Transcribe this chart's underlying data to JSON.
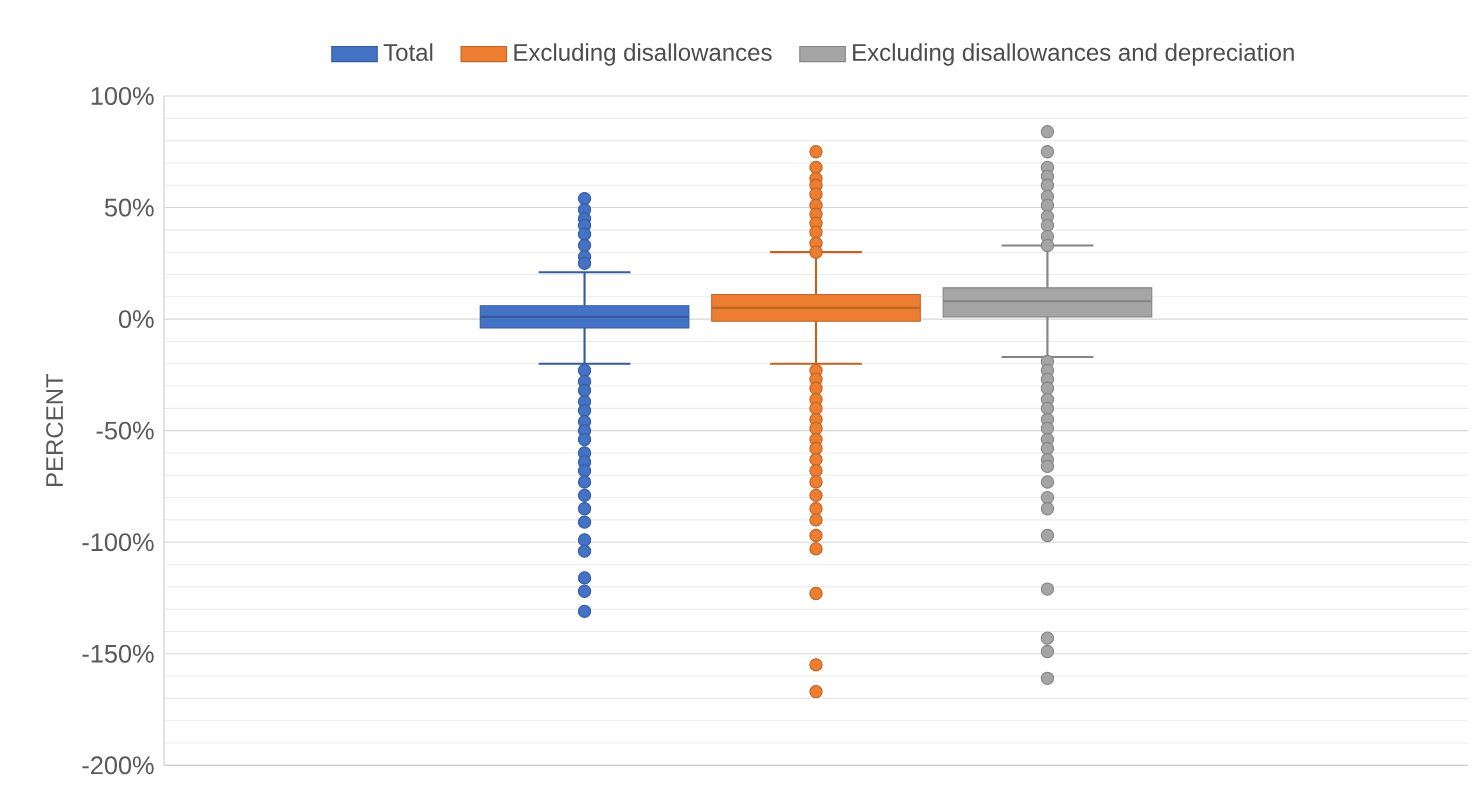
{
  "chart_data": {
    "type": "box",
    "ylabel": "PERCENT",
    "categories": [
      null
    ],
    "ylim": [
      -200,
      100
    ],
    "yticks": [
      {
        "value": -200,
        "label": "-200%"
      },
      {
        "value": -150,
        "label": "-150%"
      },
      {
        "value": -100,
        "label": "-100%"
      },
      {
        "value": -50,
        "label": "-50%"
      },
      {
        "value": 0,
        "label": "0%"
      },
      {
        "value": 50,
        "label": "50%"
      },
      {
        "value": 100,
        "label": "100%"
      }
    ],
    "grid": "y",
    "legend": "top",
    "marker": "circle",
    "series": [
      {
        "name": "Total",
        "color": "#4472c4",
        "boxes": [
          {
            "low": -20,
            "q1": -4,
            "median": 1,
            "q3": 6,
            "high": 21,
            "outliers": [
              54,
              49,
              45,
              42,
              38,
              33,
              28,
              25,
              -23,
              -28,
              -32,
              -37,
              -41,
              -46,
              -50,
              -54,
              -60,
              -64,
              -68,
              -73,
              -79,
              -85,
              -91,
              -99,
              -104,
              -116,
              -122,
              -131
            ]
          }
        ]
      },
      {
        "name": "Excluding disallowances",
        "color": "#ed7d31",
        "boxes": [
          {
            "low": -20,
            "q1": -1,
            "median": 5,
            "q3": 11,
            "high": 30,
            "outliers": [
              75,
              68,
              63,
              60,
              56,
              51,
              47,
              43,
              39,
              34,
              30,
              -23,
              -27,
              -31,
              -36,
              -40,
              -45,
              -49,
              -54,
              -58,
              -63,
              -68,
              -73,
              -79,
              -85,
              -90,
              -97,
              -103,
              -123,
              -155,
              -167
            ]
          }
        ]
      },
      {
        "name": "Excluding disallowances and depreciation",
        "color": "#a5a5a5",
        "boxes": [
          {
            "low": -17,
            "q1": 1,
            "median": 8,
            "q3": 14,
            "high": 33,
            "outliers": [
              84,
              75,
              68,
              64,
              60,
              55,
              51,
              46,
              42,
              37,
              33,
              -19,
              -23,
              -27,
              -31,
              -36,
              -40,
              -45,
              -49,
              -54,
              -58,
              -63,
              -66,
              -73,
              -80,
              -85,
              -97,
              -121,
              -143,
              -149,
              -161
            ]
          }
        ]
      }
    ]
  }
}
